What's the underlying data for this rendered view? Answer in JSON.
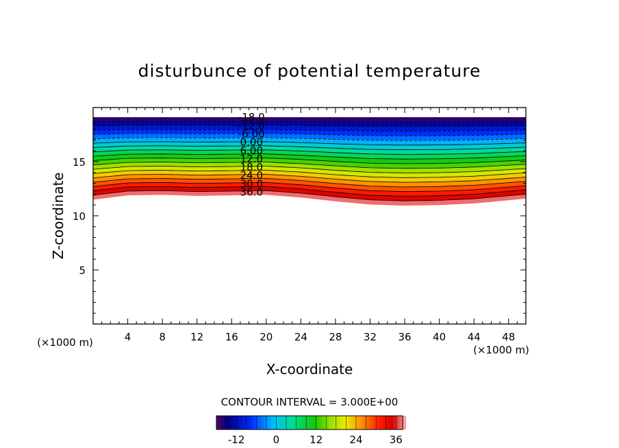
{
  "chart_data": {
    "type": "contour",
    "title": "disturbunce of potential temperature",
    "xlabel": "X-coordinate",
    "ylabel": "Z-coordinate",
    "x_unit_left": "(×1000 m)",
    "x_unit_right": "(×1000 m)",
    "xlim": [
      0,
      50
    ],
    "ylim": [
      0,
      20
    ],
    "x_ticks": [
      4,
      8,
      12,
      16,
      20,
      24,
      28,
      32,
      36,
      40,
      44,
      48
    ],
    "y_ticks": [
      5,
      10,
      15
    ],
    "contour_interval_text": "CONTOUR INTERVAL = 3.000E+00",
    "contour_interval": 3,
    "color_range": [
      -18,
      38
    ],
    "contour_labels": [
      "-18.0",
      "-12.0",
      "-6.00",
      "0.00",
      "6.00",
      "12.0",
      "18.0",
      "24.0",
      "30.0",
      "36.0"
    ],
    "shaded_region": {
      "top_z": 19.1,
      "bottom_profile": {
        "x": [
          0,
          4,
          8,
          12,
          16,
          20,
          24,
          28,
          32,
          36,
          40,
          44,
          48,
          50
        ],
        "z": [
          11.5,
          11.9,
          11.95,
          11.85,
          11.9,
          11.95,
          11.7,
          11.35,
          11.05,
          10.95,
          11.0,
          11.15,
          11.45,
          11.6
        ]
      }
    },
    "colorbar": {
      "ticks": [
        -12,
        0,
        12,
        24,
        36
      ],
      "tick_labels": [
        "-12",
        "0",
        "12",
        "24",
        "36"
      ]
    }
  }
}
